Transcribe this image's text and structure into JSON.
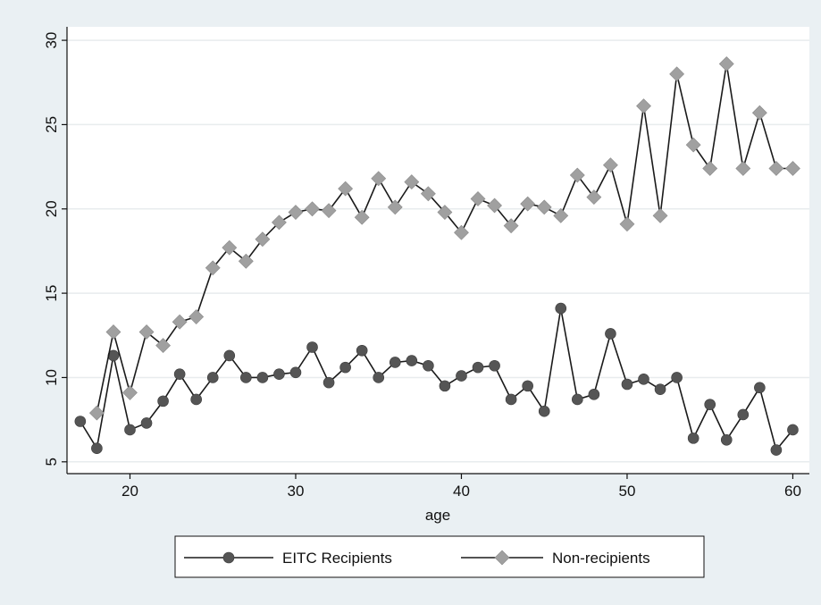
{
  "chart_data": {
    "type": "line",
    "title": "",
    "xlabel": "age",
    "ylabel": "",
    "xlim": [
      16.2,
      61.0
    ],
    "ylim": [
      4.3,
      30.8
    ],
    "x_ticks": [
      20,
      30,
      40,
      50,
      60
    ],
    "y_ticks": [
      5,
      10,
      15,
      20,
      25,
      30
    ],
    "grid": "horizontal",
    "legend": "bottom",
    "x": [
      17,
      18,
      19,
      20,
      21,
      22,
      23,
      24,
      25,
      26,
      27,
      28,
      29,
      30,
      31,
      32,
      33,
      34,
      35,
      36,
      37,
      38,
      39,
      40,
      41,
      42,
      43,
      44,
      45,
      46,
      47,
      48,
      49,
      50,
      51,
      52,
      53,
      54,
      55,
      56,
      57,
      58,
      59,
      60
    ],
    "series": [
      {
        "name": "EITC Recipients",
        "marker": "circle",
        "color": "#555555",
        "values": [
          7.4,
          5.8,
          11.3,
          6.9,
          7.3,
          8.6,
          10.2,
          8.7,
          10.0,
          11.3,
          10.0,
          10.0,
          10.2,
          10.3,
          11.8,
          9.7,
          10.6,
          11.6,
          10.0,
          10.9,
          11.0,
          10.7,
          9.5,
          10.1,
          10.6,
          10.7,
          8.7,
          9.5,
          8.0,
          14.1,
          8.7,
          9.0,
          12.6,
          9.6,
          9.9,
          9.3,
          10.0,
          6.4,
          8.4,
          6.3,
          7.8,
          9.4,
          5.7,
          6.9
        ]
      },
      {
        "name": "Non-recipients",
        "marker": "diamond",
        "color": "#a0a0a0",
        "values": [
          null,
          7.9,
          12.7,
          9.1,
          12.7,
          11.9,
          13.3,
          13.6,
          16.5,
          17.7,
          16.9,
          18.2,
          19.2,
          19.8,
          20.0,
          19.9,
          21.2,
          19.5,
          21.8,
          20.1,
          21.6,
          20.9,
          19.8,
          18.6,
          20.6,
          20.2,
          19.0,
          20.3,
          20.1,
          19.6,
          22.0,
          20.7,
          22.6,
          19.1,
          26.1,
          19.6,
          28.0,
          23.8,
          22.4,
          28.6,
          22.4,
          25.7,
          22.4,
          22.4
        ]
      }
    ]
  }
}
